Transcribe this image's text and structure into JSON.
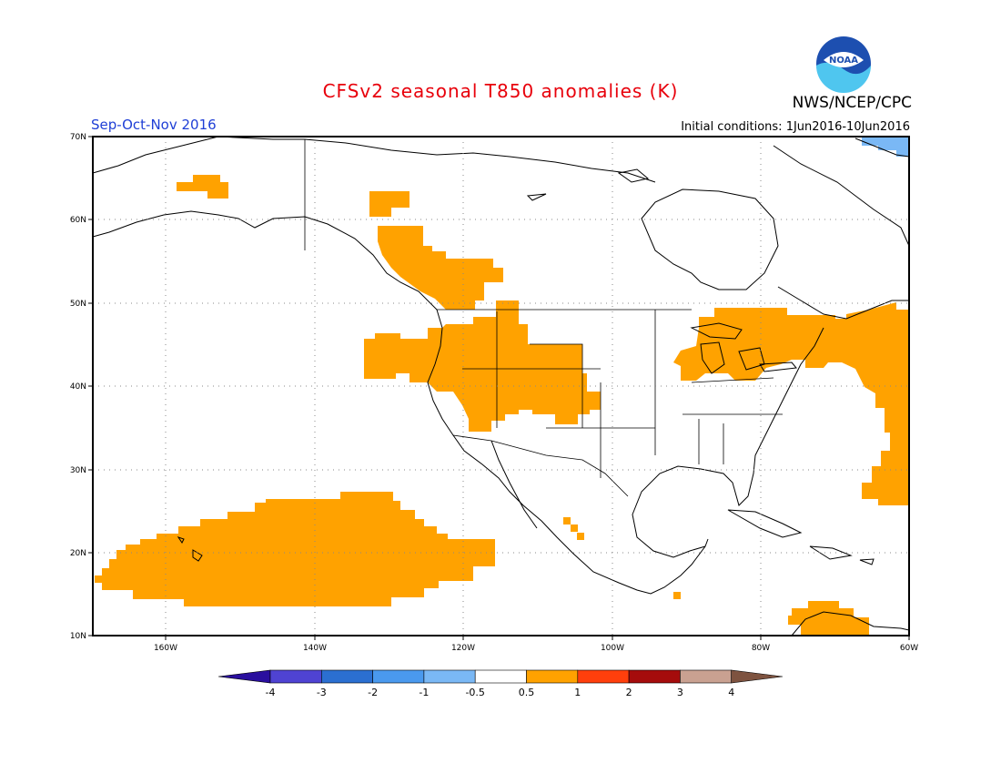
{
  "header": {
    "title": "CFSv2 seasonal T850 anomalies (K)",
    "organization": "NWS/NCEP/CPC",
    "season": "Sep-Oct-Nov 2016",
    "initial_conditions": "Initial conditions: 1Jun2016-10Jun2016",
    "logo_text": "NOAA"
  },
  "colors": {
    "title": "#e8000b",
    "season": "#1f3fd6",
    "positive_anomaly": "#ffa200",
    "negative_anomaly": "#7ab8f5",
    "coastline": "#000000"
  },
  "map": {
    "lat_labels": [
      "70N",
      "60N",
      "50N",
      "40N",
      "30N",
      "20N",
      "10N"
    ],
    "lon_labels": [
      "160W",
      "140W",
      "120W",
      "100W",
      "80W",
      "60W"
    ]
  },
  "colorbar": {
    "labels": [
      "-4",
      "-3",
      "-2",
      "-1",
      "-0.5",
      "0.5",
      "1",
      "2",
      "3",
      "4"
    ],
    "colors": [
      "#2a0f9e",
      "#4f43d2",
      "#2b6fd1",
      "#4a99ee",
      "#7ab8f5",
      "#ffffff",
      "#ffa200",
      "#ff3f0c",
      "#a50c0c",
      "#c9a191",
      "#7e5340"
    ]
  }
}
